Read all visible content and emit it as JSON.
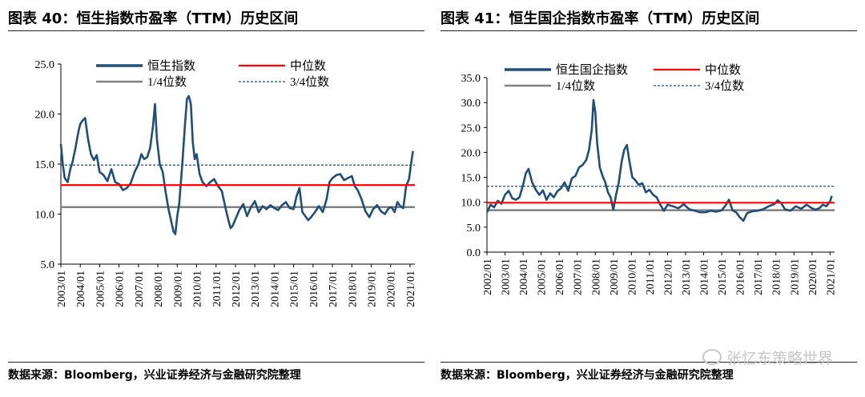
{
  "left": {
    "title": "图表 40：恒生指数市盈率（TTM）历史区间",
    "source": "数据来源：Bloomberg，兴业证券经济与金融研究院整理"
  },
  "right": {
    "title": "图表 41：恒生国企指数市盈率（TTM）历史区间",
    "source": "数据来源：Bloomberg，兴业证券经济与金融研究院整理"
  },
  "watermark": "张忆东策略世界",
  "colors": {
    "series": "#1f4e79",
    "median": "#ff0000",
    "q1": "#808080",
    "q3": "#1f4e79"
  },
  "chart_data": [
    {
      "type": "line",
      "title": "恒生指数市盈率（TTM）历史区间",
      "xlim": [
        2003.0,
        2021.25
      ],
      "ylim": [
        5,
        25
      ],
      "yticks": [
        "5.0",
        "10.0",
        "15.0",
        "20.0",
        "25.0"
      ],
      "xticks": [
        "2003/01",
        "2004/01",
        "2005/01",
        "2006/01",
        "2007/01",
        "2008/01",
        "2009/01",
        "2010/01",
        "2011/01",
        "2012/01",
        "2013/01",
        "2014/01",
        "2015/01",
        "2016/01",
        "2017/01",
        "2018/01",
        "2019/01",
        "2020/01",
        "2021/01"
      ],
      "legend": [
        "恒生指数",
        "中位数",
        "1/4位数",
        "3/4位数"
      ],
      "median": 12.9,
      "q1": 10.7,
      "q3": 14.9,
      "series": [
        {
          "name": "恒生指数",
          "x": [
            2003.0,
            2003.1,
            2003.2,
            2003.35,
            2003.5,
            2003.6,
            2003.75,
            2003.9,
            2004.0,
            2004.1,
            2004.25,
            2004.4,
            2004.55,
            2004.7,
            2004.85,
            2005.0,
            2005.2,
            2005.4,
            2005.6,
            2005.8,
            2006.0,
            2006.2,
            2006.4,
            2006.6,
            2006.8,
            2007.0,
            2007.15,
            2007.3,
            2007.45,
            2007.6,
            2007.75,
            2007.85,
            2007.95,
            2008.1,
            2008.25,
            2008.4,
            2008.55,
            2008.7,
            2008.8,
            2008.9,
            2009.0,
            2009.1,
            2009.25,
            2009.4,
            2009.5,
            2009.6,
            2009.7,
            2009.8,
            2009.9,
            2010.0,
            2010.15,
            2010.3,
            2010.5,
            2010.7,
            2010.9,
            2011.1,
            2011.3,
            2011.5,
            2011.65,
            2011.75,
            2011.85,
            2012.0,
            2012.2,
            2012.4,
            2012.6,
            2012.8,
            2013.0,
            2013.2,
            2013.4,
            2013.6,
            2013.8,
            2014.0,
            2014.2,
            2014.4,
            2014.6,
            2014.8,
            2015.0,
            2015.15,
            2015.3,
            2015.45,
            2015.6,
            2015.75,
            2015.9,
            2016.1,
            2016.3,
            2016.5,
            2016.7,
            2016.85,
            2017.0,
            2017.2,
            2017.4,
            2017.6,
            2017.8,
            2018.0,
            2018.15,
            2018.3,
            2018.5,
            2018.7,
            2018.9,
            2019.1,
            2019.3,
            2019.5,
            2019.7,
            2019.9,
            2020.05,
            2020.2,
            2020.35,
            2020.5,
            2020.65,
            2020.8,
            2020.95,
            2021.05,
            2021.15
          ],
          "values": [
            17.0,
            15.0,
            13.6,
            13.2,
            14.6,
            15.2,
            16.6,
            18.2,
            19.0,
            19.3,
            19.6,
            17.5,
            16.0,
            15.4,
            15.9,
            14.2,
            13.9,
            13.3,
            14.5,
            13.2,
            13.0,
            12.4,
            12.6,
            13.1,
            14.2,
            15.0,
            16.0,
            15.5,
            15.7,
            16.6,
            18.8,
            21.0,
            17.5,
            15.0,
            14.2,
            12.2,
            10.5,
            9.2,
            8.3,
            8.0,
            9.8,
            11.0,
            14.8,
            19.0,
            21.5,
            21.8,
            21.0,
            17.2,
            15.5,
            16.0,
            14.0,
            13.2,
            12.8,
            13.2,
            13.5,
            12.8,
            12.3,
            10.5,
            9.3,
            8.6,
            8.8,
            9.5,
            10.4,
            11.0,
            9.8,
            10.7,
            11.3,
            10.2,
            10.8,
            10.5,
            10.9,
            10.6,
            10.4,
            10.9,
            11.2,
            10.6,
            10.5,
            11.8,
            12.6,
            10.2,
            9.8,
            9.4,
            9.7,
            10.2,
            10.8,
            10.2,
            11.5,
            13.2,
            13.6,
            13.9,
            14.0,
            13.4,
            13.6,
            13.8,
            12.8,
            12.4,
            11.5,
            10.3,
            9.7,
            10.5,
            10.9,
            10.3,
            10.0,
            10.6,
            10.7,
            10.2,
            11.2,
            10.8,
            10.6,
            12.8,
            13.5,
            15.0,
            16.3
          ]
        }
      ]
    },
    {
      "type": "line",
      "title": "恒生国企指数市盈率（TTM）历史区间",
      "xlim": [
        2002.0,
        2021.25
      ],
      "ylim": [
        0,
        35
      ],
      "yticks": [
        "0.0",
        "5.0",
        "10.0",
        "15.0",
        "20.0",
        "25.0",
        "30.0",
        "35.0"
      ],
      "xticks": [
        "2002/01",
        "2003/01",
        "2004/01",
        "2005/01",
        "2006/01",
        "2007/01",
        "2008/01",
        "2009/01",
        "2010/01",
        "2011/01",
        "2012/01",
        "2013/01",
        "2014/01",
        "2015/01",
        "2016/01",
        "2017/01",
        "2018/01",
        "2019/01",
        "2020/01",
        "2021/01"
      ],
      "legend": [
        "恒生国企指数",
        "中位数",
        "1/4位数",
        "3/4位数"
      ],
      "median": 9.9,
      "q1": 8.4,
      "q3": 13.2,
      "series": [
        {
          "name": "恒生国企指数",
          "x": [
            2002.0,
            2002.2,
            2002.4,
            2002.6,
            2002.8,
            2003.0,
            2003.2,
            2003.4,
            2003.6,
            2003.8,
            2004.0,
            2004.15,
            2004.3,
            2004.5,
            2004.7,
            2004.9,
            2005.1,
            2005.3,
            2005.5,
            2005.7,
            2005.9,
            2006.1,
            2006.3,
            2006.5,
            2006.7,
            2006.9,
            2007.1,
            2007.3,
            2007.5,
            2007.65,
            2007.8,
            2007.9,
            2008.0,
            2008.1,
            2008.25,
            2008.4,
            2008.55,
            2008.7,
            2008.85,
            2009.0,
            2009.15,
            2009.3,
            2009.45,
            2009.6,
            2009.75,
            2009.9,
            2010.05,
            2010.2,
            2010.4,
            2010.6,
            2010.8,
            2011.0,
            2011.2,
            2011.4,
            2011.6,
            2011.8,
            2012.0,
            2012.3,
            2012.6,
            2012.9,
            2013.2,
            2013.5,
            2013.8,
            2014.1,
            2014.4,
            2014.7,
            2015.0,
            2015.2,
            2015.4,
            2015.6,
            2015.8,
            2016.0,
            2016.2,
            2016.4,
            2016.7,
            2017.0,
            2017.3,
            2017.6,
            2017.9,
            2018.1,
            2018.3,
            2018.5,
            2018.8,
            2019.1,
            2019.4,
            2019.7,
            2020.0,
            2020.2,
            2020.4,
            2020.6,
            2020.8,
            2021.0,
            2021.1
          ],
          "values": [
            8.0,
            9.5,
            9.0,
            10.3,
            9.7,
            11.5,
            12.3,
            10.8,
            10.5,
            11.0,
            13.5,
            15.8,
            16.7,
            14.0,
            12.5,
            11.5,
            12.4,
            10.5,
            11.8,
            11.0,
            12.2,
            12.8,
            14.0,
            12.3,
            14.8,
            15.3,
            17.0,
            17.5,
            18.5,
            20.5,
            24.5,
            30.5,
            28.0,
            22.0,
            17.0,
            15.3,
            14.0,
            12.0,
            11.0,
            8.5,
            11.5,
            14.0,
            18.0,
            20.5,
            21.5,
            18.0,
            15.0,
            14.5,
            13.5,
            13.8,
            12.0,
            12.5,
            11.5,
            11.0,
            9.5,
            8.3,
            9.5,
            9.2,
            8.8,
            9.6,
            8.6,
            8.3,
            8.0,
            8.0,
            8.3,
            8.1,
            8.4,
            9.3,
            10.5,
            8.4,
            8.0,
            7.0,
            6.3,
            7.8,
            8.2,
            8.3,
            8.6,
            9.2,
            9.6,
            10.4,
            9.8,
            8.6,
            8.3,
            9.2,
            8.7,
            9.5,
            8.8,
            8.5,
            8.8,
            9.5,
            9.2,
            10.2,
            11.3
          ]
        }
      ]
    }
  ]
}
